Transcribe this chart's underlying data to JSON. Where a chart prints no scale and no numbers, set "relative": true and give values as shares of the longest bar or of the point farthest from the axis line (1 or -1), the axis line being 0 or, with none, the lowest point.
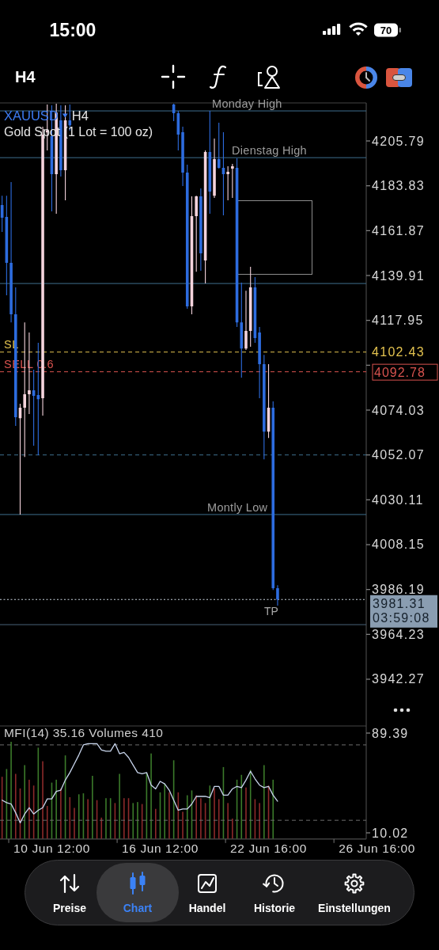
{
  "chart_data": [
    {
      "type": "candlestick",
      "title": "XAUUSD",
      "subtitle": "Gold Spot (1 Lot = 100 oz)",
      "annotations": [
        "H4",
        "4102.43",
        "4092.78",
        "3981.31",
        "03:59:08"
      ],
      "categories": [
        null,
        null,
        null,
        null,
        null,
        null,
        null,
        null,
        null,
        null,
        null,
        null,
        null,
        null,
        null,
        null,
        null,
        null,
        null,
        null,
        null,
        null,
        null,
        null,
        null,
        null,
        null,
        null,
        null,
        null,
        null,
        null,
        null,
        null,
        null,
        null,
        null,
        null,
        null,
        null,
        null,
        null,
        null,
        null,
        null,
        null,
        null,
        null,
        null,
        null,
        null,
        null,
        null,
        null,
        null,
        null,
        null,
        null,
        null,
        null,
        null,
        null,
        null,
        null,
        null,
        null,
        null,
        null,
        null,
        null,
        null,
        null,
        null,
        null,
        null,
        null,
        null,
        null,
        null,
        null,
        null,
        null,
        null,
        null
      ],
      "ohlc": [
        [
          4174.4,
          4179.0,
          4161.2,
          4168.2
        ],
        [
          4168.6,
          4179.0,
          4130.2,
          4146.1
        ],
        [
          4146.1,
          4185.6,
          4117.0,
          4120.9
        ],
        [
          4120.9,
          4134.1,
          4066.3,
          4070.5
        ],
        [
          4070.1,
          4077.1,
          4022.9,
          4075.2
        ],
        [
          4075.2,
          4117.0,
          4051.1,
          4081.8
        ],
        [
          4081.8,
          4112.0,
          4072.1,
          4083.7
        ],
        [
          4083.7,
          4093.8,
          4056.6,
          4081.0
        ],
        [
          4081.4,
          4107.0,
          4051.9,
          4079.4
        ],
        [
          4079.8,
          4212.8,
          4071.3,
          4208.9
        ],
        [
          4210.0,
          4223.6,
          4201.1,
          4211.0
        ],
        [
          4208.1,
          4223.2,
          4171.3,
          4189.5
        ],
        [
          4189.5,
          4224.0,
          4170.1,
          4219.7
        ],
        [
          4215.9,
          4223.2,
          4188.4,
          4191.5
        ],
        [
          4191.5,
          4223.2,
          4176.7,
          4215.9
        ],
        [
          4215.9,
          4223.6,
          4210.8,
          4213.5
        ],
        null,
        null,
        null,
        null,
        null,
        null,
        null,
        null,
        null,
        null,
        null,
        null,
        null,
        null,
        null,
        null,
        null,
        null,
        null,
        null,
        null,
        null,
        [
          4223.6,
          4224.0,
          4215.5,
          4219.4
        ],
        [
          4219.4,
          4220.5,
          4201.1,
          4208.9
        ],
        [
          4210.1,
          4212.8,
          4183.7,
          4190.3
        ],
        [
          4190.3,
          4194.2,
          4123.6,
          4124.8
        ],
        [
          4124.8,
          4178.7,
          4120.9,
          4169.0
        ],
        [
          4169.0,
          4179.0,
          4141.8,
          4178.7
        ],
        [
          4178.7,
          4182.5,
          4142.2,
          4150.8
        ],
        [
          4147.3,
          4201.1,
          4136.0,
          4200.4
        ],
        [
          4200.4,
          4220.5,
          4170.1,
          4181.0
        ],
        [
          4179.0,
          4207.0,
          4177.9,
          4196.9
        ],
        [
          4196.9,
          4214.7,
          4192.2,
          4192.6
        ],
        [
          4192.6,
          4210.1,
          4169.4,
          4189.5
        ],
        [
          4189.5,
          4193.4,
          4176.7,
          4190.7
        ],
        [
          4192.2,
          4194.6,
          4177.9,
          4193.4
        ],
        [
          4192.6,
          4197.3,
          4114.7,
          4117.0
        ],
        [
          4117.0,
          4136.4,
          4089.9,
          4104.2
        ],
        [
          4104.2,
          4132.5,
          4103.5,
          4112.8
        ],
        [
          4112.8,
          4144.2,
          4105.0,
          4134.1
        ],
        [
          4134.1,
          4139.1,
          4107.0,
          4109.3
        ],
        [
          4112.0,
          4114.7,
          4079.8,
          4096.5
        ],
        [
          4096.5,
          4101.1,
          4049.9,
          4063.5
        ],
        [
          4063.5,
          4096.5,
          4060.4,
          4075.2
        ],
        [
          4075.2,
          4078.3,
          3986.0,
          3986.8
        ],
        [
          3986.8,
          3988.3,
          3978.3,
          3981.31
        ],
        null,
        null,
        null,
        null,
        null,
        null,
        null,
        null,
        null,
        null,
        null,
        null,
        null,
        null,
        null,
        null,
        null,
        null,
        null,
        null,
        null,
        null
      ],
      "colors": [
        "#2d6cdf",
        "#2d6cdf",
        "#2d6cdf",
        "#2d6cdf",
        "#f4d3dc",
        "#f4d3dc",
        "#f4d3dc",
        "#2d6cdf",
        "#2d6cdf",
        "#f4d3dc",
        "#f4d3dc",
        "#2d6cdf",
        "#f4d3dc",
        "#2d6cdf",
        "#f4d3dc",
        "#2d6cdf",
        null,
        null,
        null,
        null,
        null,
        null,
        null,
        null,
        null,
        null,
        null,
        null,
        null,
        null,
        null,
        null,
        null,
        null,
        null,
        null,
        null,
        null,
        "#2d6cdf",
        "#2d6cdf",
        "#2d6cdf",
        "#2d6cdf",
        "#f4d3dc",
        "#f4d3dc",
        "#2d6cdf",
        "#f4d3dc",
        "#2d6cdf",
        "#f4d3dc",
        "#2d6cdf",
        "#2d6cdf",
        "#f4d3dc",
        "#f4d3dc",
        "#2d6cdf",
        "#2d6cdf",
        "#f4d3dc",
        "#f4d3dc",
        "#2d6cdf",
        "#2d6cdf",
        "#2d6cdf",
        "#f4d3dc",
        "#2d6cdf",
        "#2d6cdf",
        null,
        null,
        null,
        null,
        null,
        null,
        null,
        null,
        null,
        null,
        null,
        null,
        null,
        null,
        null,
        null,
        null,
        null,
        null,
        null,
        null,
        null
      ],
      "ylim": [
        3919.4,
        4224.4
      ],
      "yticks": [
        3942.27,
        3964.23,
        3986.19,
        4008.15,
        4030.11,
        4052.07,
        4074.03,
        {
          "value": 4095.99,
          "label": null
        },
        4117.95,
        4139.91,
        4161.87,
        4183.83,
        4205.79
      ],
      "ref_lines": [
        {
          "axis": "y",
          "value": 4220.5,
          "label": "Monday High",
          "color": "#3e6f8e"
        },
        {
          "axis": "y",
          "value": 4197.6,
          "label": "Dienstag High",
          "color": "#3e6f8e"
        },
        {
          "axis": "y",
          "value": 4136.0,
          "color": "#3e6f8e"
        },
        {
          "axis": "y",
          "value": 4102.43,
          "label": "SL",
          "color": "#e3c24f",
          "line_style": "dashed"
        },
        {
          "axis": "y",
          "value": 4092.78,
          "label": "SELL 0.6",
          "color": "#d9534f",
          "line_style": "dashed"
        },
        {
          "axis": "y",
          "value": 4052.07,
          "color": "#3e6f8e",
          "line_style": "dashed"
        },
        {
          "axis": "y",
          "value": 4022.9,
          "label": "Montly Low",
          "color": "#3e6f8e"
        },
        {
          "axis": "y",
          "value": 3981.31,
          "label": "TP",
          "color": "#c9d3dd",
          "line_style": "dotted"
        },
        {
          "axis": "y",
          "value": 3969.0,
          "color": "#4a6378"
        }
      ]
    },
    {
      "type": "line",
      "title": "MFI(14) 35.16 Volumes 410",
      "categories": [
        null,
        null,
        null,
        null,
        null,
        null,
        null,
        null,
        null,
        null,
        null,
        "10 Jun 12:00",
        null,
        null,
        null,
        null,
        null,
        null,
        null,
        null,
        null,
        null,
        null,
        null,
        null,
        null,
        null,
        null,
        null,
        null,
        null,
        null,
        null,
        null,
        null,
        "16 Jun 12:00",
        null,
        null,
        null,
        null,
        null,
        null,
        null,
        null,
        null,
        null,
        null,
        null,
        null,
        null,
        null,
        null,
        null,
        null,
        null,
        null,
        null,
        null,
        null,
        "22 Jun 16:00",
        null,
        null,
        null,
        null,
        null,
        null,
        null,
        null,
        null,
        null,
        null,
        null,
        null,
        null,
        null,
        null,
        null,
        null,
        null,
        null,
        null,
        null,
        null,
        "26 Jun 16:00"
      ],
      "series": [
        {
          "color": "#c8d5ec",
          "values": [
            36,
            34,
            33,
            26,
            18,
            25,
            30,
            25,
            28,
            30,
            37,
            37,
            43,
            44,
            52,
            58,
            65,
            72,
            80,
            81,
            81,
            81,
            76,
            75,
            75,
            81,
            73,
            74,
            70,
            64,
            58,
            57,
            58,
            48,
            45,
            51,
            49,
            44,
            36,
            28,
            29,
            29,
            33,
            39,
            39,
            39,
            38,
            47,
            47,
            40,
            40,
            45,
            47,
            46,
            52,
            59,
            53,
            48,
            46,
            47,
            40,
            35.16,
            null,
            null,
            null,
            null,
            null,
            null,
            null,
            null,
            null,
            null,
            null,
            null,
            null,
            null,
            null,
            null,
            null,
            null,
            null,
            null,
            null,
            null
          ]
        }
      ],
      "ylim": [
        10.02,
        89.39
      ],
      "yticks": [
        10.02,
        89.39
      ],
      "ref_lines": [
        {
          "axis": "y",
          "value": 80,
          "color": "#6e6e6e",
          "line_style": "dashed"
        },
        {
          "axis": "y",
          "value": 20,
          "color": "#6e6e6e",
          "line_style": "dashed"
        }
      ]
    },
    {
      "type": "bar",
      "relative": true,
      "categories": [
        null,
        null,
        null,
        null,
        null,
        null,
        null,
        null,
        null,
        null,
        null,
        null,
        null,
        null,
        null,
        null,
        null,
        null,
        null,
        null,
        null,
        null,
        null,
        null,
        null,
        null,
        null,
        null,
        null,
        null,
        null,
        null,
        null,
        null,
        null,
        null,
        null,
        null,
        null,
        null,
        null,
        null,
        null,
        null,
        null,
        null,
        null,
        null,
        null,
        null,
        null,
        null,
        null,
        null,
        null,
        null,
        null,
        null,
        null,
        null,
        null,
        null,
        null,
        null,
        null,
        null,
        null,
        null,
        null,
        null,
        null,
        null,
        null,
        null,
        null,
        null,
        null,
        null,
        null,
        null,
        null,
        null,
        null,
        null
      ],
      "values": [
        0.64,
        0.72,
        1,
        0.67,
        0.52,
        0.76,
        0.61,
        0.55,
        0.94,
        0.8,
        0.34,
        0.58,
        0.61,
        0.52,
        0.86,
        0.43,
        0.32,
        0.46,
        0.47,
        0.41,
        0.65,
        0.4,
        0.22,
        0.42,
        0.42,
        0.37,
        0.67,
        0.42,
        0.42,
        0.37,
        0.38,
        0.36,
        0.68,
        0.88,
        0.31,
        0.48,
        0.57,
        0.48,
        0.81,
        0.48,
        0.28,
        0.45,
        0.5,
        0.45,
        0.42,
        0.37,
        0.55,
        0.52,
        0.41,
        0.74,
        0.37,
        0.21,
        0.61,
        0.66,
        0.53,
        0.71,
        0.41,
        0.37,
        0.76,
        0.55,
        0.61,
        null,
        null,
        null,
        null,
        null,
        null,
        null,
        null,
        null,
        null,
        null,
        null,
        null,
        null,
        null,
        null,
        null,
        null,
        null,
        null,
        null,
        null,
        null
      ],
      "colors": [
        "#8c2a2a",
        "#3b7a2a",
        "#3b7a2a",
        "#8c2a2a",
        "#8c2a2a",
        "#3b7a2a",
        "#8c2a2a",
        "#8c2a2a",
        "#3b7a2a",
        "#8c2a2a",
        "#8c2a2a",
        "#3b7a2a",
        "#3b7a2a",
        "#8c2a2a",
        "#3b7a2a",
        "#8c2a2a",
        "#8c2a2a",
        "#3b7a2a",
        "#3b7a2a",
        "#8c2a2a",
        "#3b7a2a",
        "#8c2a2a",
        "#8c2a2a",
        "#3b7a2a",
        "#3b7a2a",
        "#8c2a2a",
        "#3b7a2a",
        "#8c2a2a",
        "#8c2a2a",
        "#3b7a2a",
        "#3b7a2a",
        "#8c2a2a",
        "#3b7a2a",
        "#3b7a2a",
        "#8c2a2a",
        "#3b7a2a",
        "#3b7a2a",
        "#8c2a2a",
        "#3b7a2a",
        "#8c2a2a",
        "#8c2a2a",
        "#3b7a2a",
        "#3b7a2a",
        "#8c2a2a",
        "#8c2a2a",
        "#8c2a2a",
        "#3b7a2a",
        "#8c2a2a",
        "#8c2a2a",
        "#3b7a2a",
        "#8c2a2a",
        "#8c2a2a",
        "#3b7a2a",
        "#3b7a2a",
        "#8c2a2a",
        "#3b7a2a",
        "#8c2a2a",
        "#8c2a2a",
        "#3b7a2a",
        "#8c2a2a",
        "#3b7a2a",
        null,
        null,
        null,
        null,
        null,
        null,
        null,
        null,
        null,
        null,
        null,
        null,
        null,
        null,
        null,
        null,
        null,
        null,
        null,
        null,
        null,
        null,
        null
      ]
    },
    {
      "type": "other",
      "annotations": [
        "15:00",
        "70",
        "H4",
        "Preise",
        "Chart",
        "Handel",
        "Historie",
        "Einstellungen"
      ]
    }
  ]
}
